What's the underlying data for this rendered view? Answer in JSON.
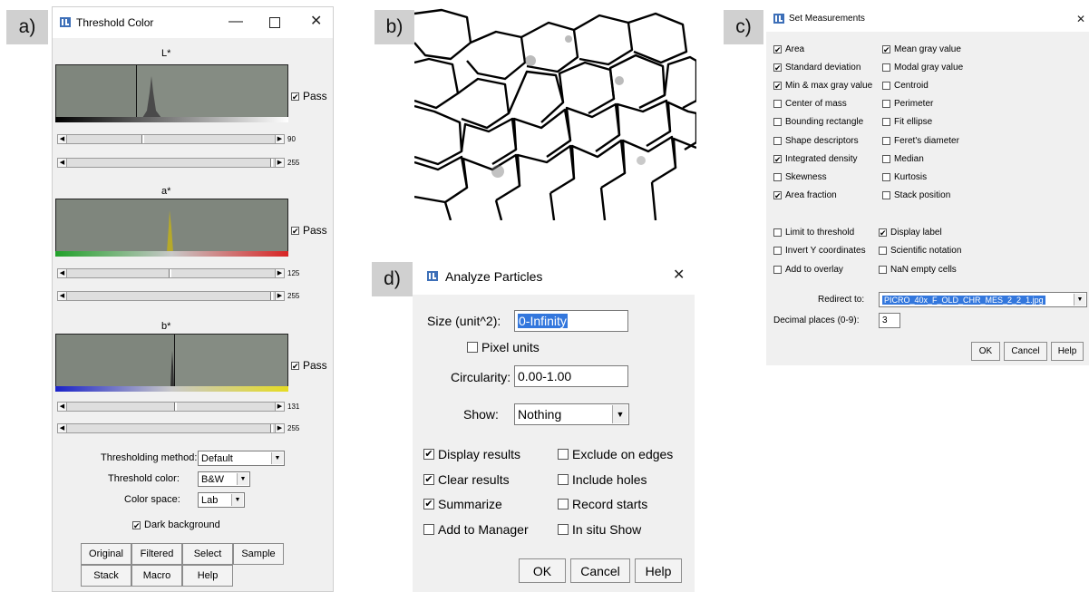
{
  "panel_labels": {
    "a": "a)",
    "b": "b)",
    "c": "c)",
    "d": "d)"
  },
  "threshold": {
    "title": "Threshold Color",
    "channels": [
      {
        "name": "L*",
        "pass": "Pass",
        "min": 90,
        "max": 255
      },
      {
        "name": "a*",
        "pass": "Pass",
        "min": 125,
        "max": 255
      },
      {
        "name": "b*",
        "pass": "Pass",
        "min": 131,
        "max": 255
      }
    ],
    "method_label": "Thresholding method:",
    "method_value": "Default",
    "color_label": "Threshold color:",
    "color_value": "B&W",
    "space_label": "Color space:",
    "space_value": "Lab",
    "dark_bg_label": "Dark background",
    "dark_bg_checked": true,
    "buttons": [
      "Original",
      "Filtered",
      "Select",
      "Sample",
      "Stack",
      "Macro",
      "Help"
    ]
  },
  "set_measurements": {
    "title": "Set Measurements",
    "left_items": [
      {
        "label": "Area",
        "checked": true
      },
      {
        "label": "Standard deviation",
        "checked": true
      },
      {
        "label": "Min & max gray value",
        "checked": true
      },
      {
        "label": "Center of mass",
        "checked": false
      },
      {
        "label": "Bounding rectangle",
        "checked": false
      },
      {
        "label": "Shape descriptors",
        "checked": false
      },
      {
        "label": "Integrated density",
        "checked": true
      },
      {
        "label": "Skewness",
        "checked": false
      },
      {
        "label": "Area fraction",
        "checked": true
      }
    ],
    "right_items": [
      {
        "label": "Mean gray value",
        "checked": true
      },
      {
        "label": "Modal gray value",
        "checked": false
      },
      {
        "label": "Centroid",
        "checked": false
      },
      {
        "label": "Perimeter",
        "checked": false
      },
      {
        "label": "Fit ellipse",
        "checked": false
      },
      {
        "label": "Feret's diameter",
        "checked": false
      },
      {
        "label": "Median",
        "checked": false
      },
      {
        "label": "Kurtosis",
        "checked": false
      },
      {
        "label": "Stack position",
        "checked": false
      }
    ],
    "opt_left": [
      {
        "label": "Limit to threshold",
        "checked": false
      },
      {
        "label": "Invert Y coordinates",
        "checked": false
      },
      {
        "label": "Add to overlay",
        "checked": false
      }
    ],
    "opt_right": [
      {
        "label": "Display label",
        "checked": true
      },
      {
        "label": "Scientific notation",
        "checked": false
      },
      {
        "label": "NaN empty cells",
        "checked": false
      }
    ],
    "redirect_label": "Redirect to:",
    "redirect_value": "PICRO_40x_F_OLD_CHR_MES_2_2_1.jpg",
    "decimal_label": "Decimal places (0-9):",
    "decimal_value": "3",
    "ok": "OK",
    "cancel": "Cancel",
    "help": "Help"
  },
  "analyze_particles": {
    "title": "Analyze Particles",
    "size_label": "Size (unit^2):",
    "size_value": "0-Infinity",
    "pixel_units_label": "Pixel units",
    "pixel_units_checked": false,
    "circularity_label": "Circularity:",
    "circularity_value": "0.00-1.00",
    "show_label": "Show:",
    "show_value": "Nothing",
    "left_checks": [
      {
        "label": "Display results",
        "checked": true
      },
      {
        "label": "Clear results",
        "checked": true
      },
      {
        "label": "Summarize",
        "checked": true
      },
      {
        "label": "Add to Manager",
        "checked": false
      }
    ],
    "right_checks": [
      {
        "label": "Exclude on edges",
        "checked": false
      },
      {
        "label": "Include holes",
        "checked": false
      },
      {
        "label": "Record starts",
        "checked": false
      },
      {
        "label": "In situ Show",
        "checked": false
      }
    ],
    "ok": "OK",
    "cancel": "Cancel",
    "help": "Help"
  },
  "colors": {
    "histogram_bg": "#7f867d",
    "selection": "#3377dd"
  }
}
